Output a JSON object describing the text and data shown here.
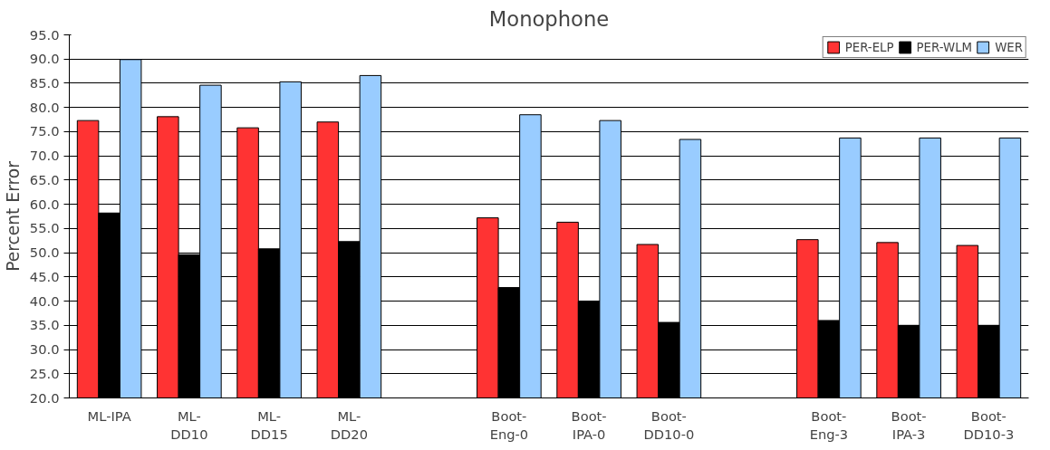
{
  "chart_data": {
    "type": "bar",
    "title": "Monophone",
    "ylabel": "Percent Error",
    "categories": [
      "ML-IPA",
      "ML-\nDD10",
      "ML-\nDD15",
      "ML-\nDD20",
      null,
      "Boot-\nEng-0",
      "Boot-\nIPA-0",
      "Boot-\nDD10-0",
      null,
      "Boot-\nEng-3",
      "Boot-\nIPA-3",
      "Boot-\nDD10-3"
    ],
    "series": [
      {
        "name": "PER-ELP",
        "color": "#ff3333",
        "values": [
          77.3,
          78.1,
          75.8,
          77.0,
          null,
          57.2,
          56.3,
          51.7,
          null,
          52.7,
          52.1,
          51.5
        ]
      },
      {
        "name": "PER-WLM",
        "color": "#000000",
        "values": [
          58.2,
          49.6,
          50.8,
          52.3,
          null,
          42.8,
          39.9,
          35.6,
          null,
          36.0,
          35.0,
          35.0
        ]
      },
      {
        "name": "WER",
        "color": "#99ccff",
        "values": [
          89.9,
          84.6,
          85.3,
          86.6,
          null,
          78.5,
          77.3,
          73.4,
          null,
          73.7,
          73.7,
          73.7
        ]
      }
    ],
    "ylim": [
      20,
      95
    ],
    "yticks": [
      {
        "value": 20,
        "label": "20.0"
      },
      {
        "value": 25,
        "label": "25.0"
      },
      {
        "value": 30,
        "label": "30.0"
      },
      {
        "value": 35,
        "label": "35.0"
      },
      {
        "value": 40,
        "label": "40.0"
      },
      {
        "value": 45,
        "label": "45.0"
      },
      {
        "value": 50,
        "label": "50.0"
      },
      {
        "value": 55,
        "label": "55.0"
      },
      {
        "value": 60,
        "label": "60.0"
      },
      {
        "value": 65,
        "label": "65.0"
      },
      {
        "value": 70,
        "label": "70.0"
      },
      {
        "value": 75,
        "label": "75.0"
      },
      {
        "value": 80,
        "label": "80.0"
      },
      {
        "value": 85,
        "label": "85.0"
      },
      {
        "value": 90,
        "label": "90.0"
      },
      {
        "value": 95,
        "label": "95.0"
      }
    ],
    "grid": "y",
    "legend": "top right"
  }
}
